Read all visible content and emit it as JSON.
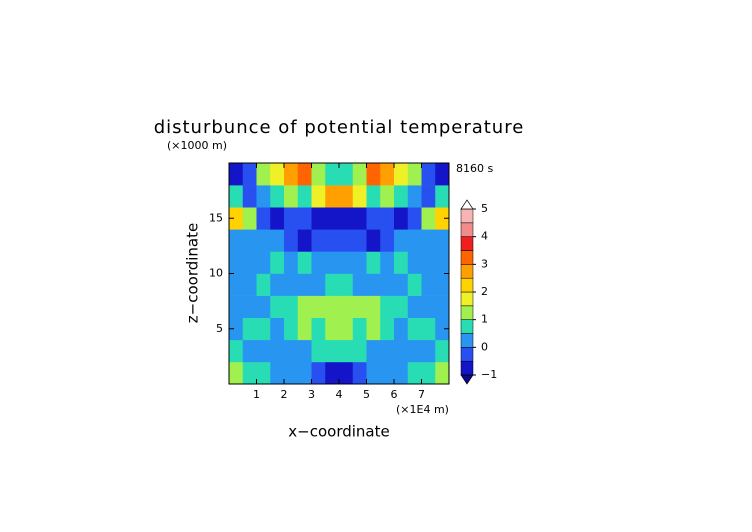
{
  "chart_data": {
    "type": "heatmap",
    "title": "disturbunce of potential temperature",
    "y_unit": "(×1000 m)",
    "x_unit": "(×1E4 m)",
    "time_label": "8160 s",
    "xlabel": "x−coordinate",
    "ylabel": "z−coordinate",
    "xlim": [
      0,
      8
    ],
    "ylim": [
      0,
      20
    ],
    "xticks": [
      1,
      2,
      3,
      4,
      5,
      6,
      7
    ],
    "yticks": [
      5,
      10,
      15
    ],
    "x": [
      0.25,
      0.75,
      1.25,
      1.75,
      2.25,
      2.75,
      3.25,
      3.75,
      4.25,
      4.75,
      5.25,
      5.75,
      6.25,
      6.75,
      7.25,
      7.75
    ],
    "z": [
      1,
      3,
      5,
      7,
      9,
      11,
      13,
      15,
      17,
      19
    ],
    "values": [
      [
        1.2,
        0.5,
        0.8,
        0.3,
        0.3,
        0.2,
        -0.3,
        -0.6,
        -0.6,
        -0.3,
        0.2,
        0.3,
        0.3,
        0.8,
        0.5,
        1.2
      ],
      [
        0.8,
        0.4,
        0.3,
        0.4,
        0.3,
        0.4,
        0.6,
        0.5,
        0.5,
        0.6,
        0.4,
        0.3,
        0.4,
        0.3,
        0.4,
        0.8
      ],
      [
        0.3,
        0.9,
        0.6,
        0.4,
        0.8,
        1.0,
        0.9,
        1.2,
        1.2,
        0.9,
        1.0,
        0.8,
        0.4,
        0.6,
        0.9,
        0.3
      ],
      [
        0.3,
        0.4,
        0.4,
        0.5,
        0.6,
        1.0,
        1.1,
        1.0,
        1.0,
        1.1,
        1.0,
        0.6,
        0.5,
        0.4,
        0.4,
        0.3
      ],
      [
        0.4,
        0.4,
        0.5,
        0.4,
        0.4,
        0.4,
        0.4,
        0.5,
        0.5,
        0.4,
        0.4,
        0.4,
        0.4,
        0.5,
        0.4,
        0.4
      ],
      [
        0.3,
        0.4,
        0.4,
        0.5,
        0.4,
        0.5,
        0.3,
        0.4,
        0.4,
        0.3,
        0.5,
        0.4,
        0.5,
        0.4,
        0.4,
        0.3
      ],
      [
        0.3,
        0.2,
        0.2,
        0.3,
        -0.4,
        -0.6,
        -0.5,
        -0.3,
        -0.3,
        -0.5,
        -0.6,
        -0.4,
        0.3,
        0.2,
        0.2,
        0.3
      ],
      [
        2.0,
        1.0,
        -0.3,
        -0.6,
        -0.5,
        -0.3,
        -0.6,
        -0.8,
        -0.8,
        -0.6,
        -0.3,
        -0.5,
        -0.6,
        -0.3,
        1.0,
        2.0
      ],
      [
        0.5,
        -0.3,
        0.3,
        0.8,
        1.2,
        0.8,
        1.5,
        2.5,
        2.5,
        1.5,
        0.8,
        1.2,
        0.8,
        0.3,
        -0.3,
        0.5
      ],
      [
        -0.7,
        -0.5,
        1.2,
        1.8,
        2.8,
        3.2,
        1.0,
        0.8,
        0.8,
        1.0,
        3.2,
        2.8,
        1.8,
        1.2,
        -0.5,
        -0.7
      ]
    ],
    "levels": [
      -1,
      -0.5,
      0,
      0.5,
      1,
      1.5,
      2,
      2.5,
      3,
      3.5,
      4,
      4.5,
      5
    ],
    "colors": [
      "#1414c8",
      "#2850f0",
      "#2896f0",
      "#28dcb4",
      "#a0f050",
      "#f0f028",
      "#ffd200",
      "#ffa000",
      "#ff6400",
      "#f01e1e",
      "#f08c8c",
      "#f8b4b4"
    ],
    "under_color": "#0a0a8c",
    "over_color": "#ffffff",
    "colorbar_ticks": [
      {
        "value": -1,
        "label": "−1"
      },
      0,
      1,
      2,
      3,
      4,
      5
    ]
  }
}
